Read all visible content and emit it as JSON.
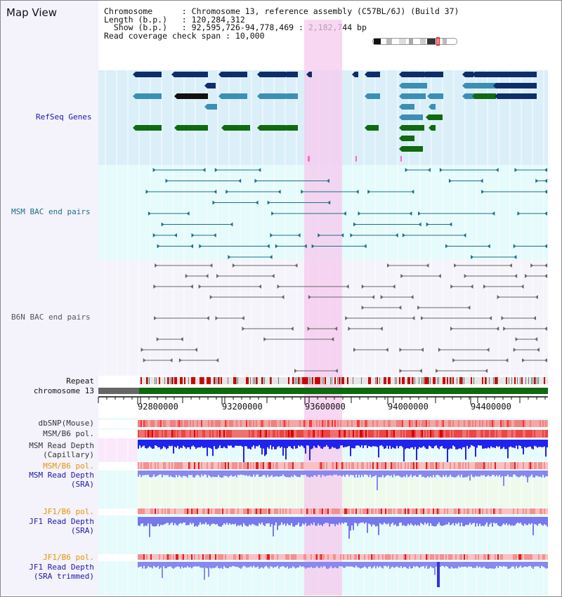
{
  "title": "Map View",
  "info": {
    "chromosome_key": "Chromosome",
    "chromosome_val": "Chromosome 13, reference assembly (C57BL/6J) (Build 37)",
    "length_key": "Length (b.p.)",
    "length_val": "120,284,312",
    "show_key": "Show (b.p.)",
    "show_val": "92,595,726-94,778,469 : 2,182,744 bp",
    "coverage_key": "Read coverage check span",
    "coverage_val": "10,000"
  },
  "tracks": {
    "refseq": {
      "label": "RefSeq Genes",
      "color": "#1a1aa6"
    },
    "msm_bac": {
      "label": "MSM BAC end pairs",
      "color": "#1f6f86"
    },
    "b6n_bac": {
      "label": "B6N BAC end pairs",
      "color": "#555555"
    },
    "repeat": {
      "label": "Repeat"
    },
    "chromosome": {
      "label": "chromosome 13"
    },
    "dbsnp": {
      "label": "dbSNP(Mouse)"
    },
    "msm_b6_pol_1": {
      "label": "MSM/B6 pol."
    },
    "msm_read_depth_cap_1": {
      "label": "MSM Read Depth"
    },
    "msm_read_depth_cap_2": {
      "label": "(Capillary)"
    },
    "msm_b6_pol_2": {
      "label": "MSM/B6 pol."
    },
    "msm_read_depth_sra_1": {
      "label": "MSM Read Depth"
    },
    "msm_read_depth_sra_2": {
      "label": "(SRA)"
    },
    "jf1_b6_pol_1": {
      "label": "JF1/B6 pol."
    },
    "jf1_read_depth_sra_1": {
      "label": "JF1 Read Depth"
    },
    "jf1_read_depth_sra_2": {
      "label": "(SRA)"
    },
    "jf1_b6_pol_2": {
      "label": "JF1/B6 pol."
    },
    "jf1_read_depth_trim_1": {
      "label": "JF1 Read Depth"
    },
    "jf1_read_depth_trim_2": {
      "label": "(SRA trimmed)"
    }
  },
  "axis": {
    "ticks": [
      "92800000",
      "93200000",
      "93600000",
      "94000000",
      "94400000"
    ]
  },
  "colors": {
    "label_dark": "#333333",
    "label_orange": "#e69500",
    "label_blue": "#1a1aa6",
    "gene_dark": "#0f2d6b",
    "gene_mid": "#3b8fb5",
    "gene_green": "#0f6a10",
    "highlight": "#f6c9ee"
  }
}
